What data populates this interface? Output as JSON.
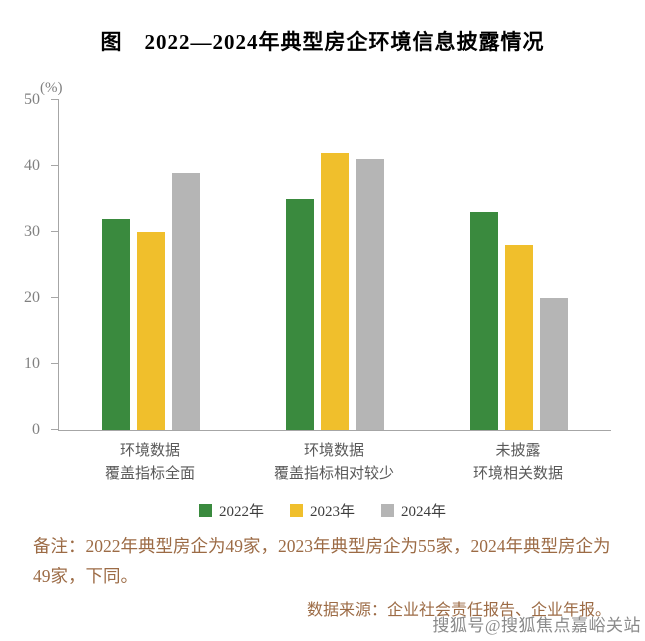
{
  "title": "图　2022—2024年典型房企环境信息披露情况",
  "chart_data": {
    "type": "bar",
    "title": "2022—2024年典型房企环境信息披露情况",
    "unit_label": "(%)",
    "categories": [
      [
        "环境数据",
        "覆盖指标全面"
      ],
      [
        "环境数据",
        "覆盖指标相对较少"
      ],
      [
        "未披露",
        "环境相关数据"
      ]
    ],
    "series": [
      {
        "name": "2022年",
        "color": "#3a8a3e",
        "values": [
          32,
          35,
          33
        ]
      },
      {
        "name": "2023年",
        "color": "#f0bf2c",
        "values": [
          30,
          42,
          28
        ]
      },
      {
        "name": "2024年",
        "color": "#b5b5b5",
        "values": [
          39,
          41,
          20
        ]
      }
    ],
    "ylim": [
      0,
      50
    ],
    "yticks": [
      0,
      10,
      20,
      30,
      40,
      50
    ],
    "grid": false,
    "legend_position": "bottom"
  },
  "note": "备注：2022年典型房企为49家，2023年典型房企为55家，2024年典型房企为49家，下同。",
  "source": "数据来源：企业社会责任报告、企业年报。",
  "watermark": "搜狐号@搜狐焦点嘉峪关站"
}
